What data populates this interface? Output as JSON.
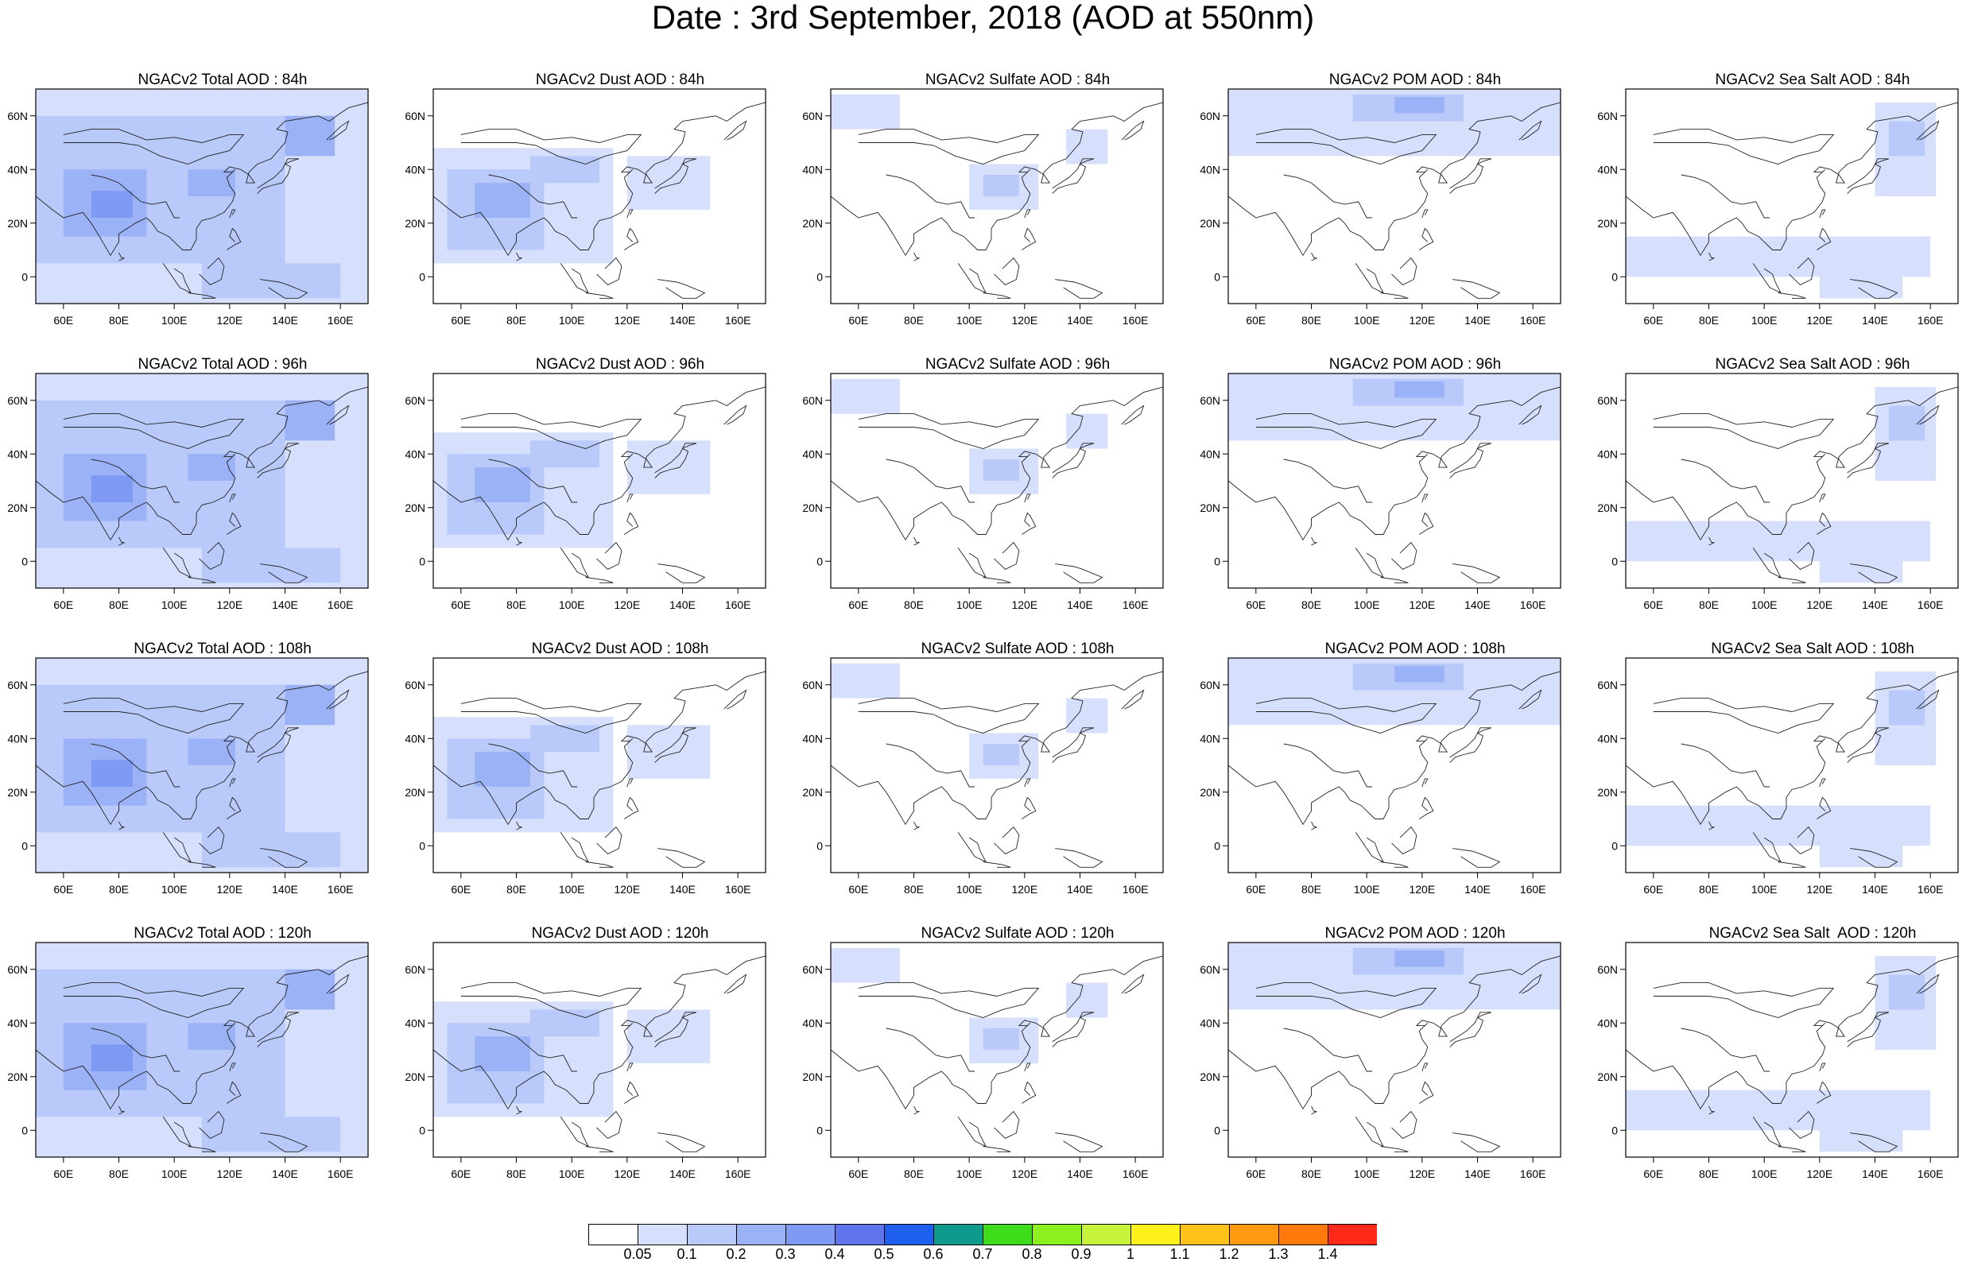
{
  "title": "Date : 3rd September, 2018 (AOD at 550nm)",
  "axes": {
    "lon_ticks": [
      60,
      80,
      100,
      120,
      140,
      160
    ],
    "lon_labels": [
      "60E",
      "80E",
      "100E",
      "120E",
      "140E",
      "160E"
    ],
    "lat_ticks": [
      0,
      20,
      40,
      60
    ],
    "lat_labels": [
      "0",
      "20N",
      "40N",
      "60N"
    ],
    "lon_range": [
      50,
      170
    ],
    "lat_range": [
      -10,
      70
    ]
  },
  "rows": [
    {
      "lead": "84h",
      "panels": [
        {
          "species": "total",
          "title": "NGACv2 Total AOD : 84h"
        },
        {
          "species": "dust",
          "title": "NGACv2 Dust AOD : 84h"
        },
        {
          "species": "sulfate",
          "title": "NGACv2 Sulfate AOD : 84h"
        },
        {
          "species": "pom",
          "title": "NGACv2 POM AOD : 84h"
        },
        {
          "species": "seasalt",
          "title": "NGACv2 Sea Salt AOD : 84h"
        }
      ]
    },
    {
      "lead": "96h",
      "panels": [
        {
          "species": "total",
          "title": "NGACv2 Total AOD : 96h"
        },
        {
          "species": "dust",
          "title": "NGACv2 Dust AOD : 96h"
        },
        {
          "species": "sulfate",
          "title": "NGACv2 Sulfate AOD : 96h"
        },
        {
          "species": "pom",
          "title": "NGACv2 POM AOD : 96h"
        },
        {
          "species": "seasalt",
          "title": "NGACv2 Sea Salt AOD : 96h"
        }
      ]
    },
    {
      "lead": "108h",
      "panels": [
        {
          "species": "total",
          "title": "NGACv2 Total AOD : 108h"
        },
        {
          "species": "dust",
          "title": "NGACv2 Dust AOD : 108h"
        },
        {
          "species": "sulfate",
          "title": "NGACv2 Sulfate AOD : 108h"
        },
        {
          "species": "pom",
          "title": "NGACv2 POM AOD : 108h"
        },
        {
          "species": "seasalt",
          "title": "NGACv2 Sea Salt AOD : 108h"
        }
      ]
    },
    {
      "lead": "120h",
      "panels": [
        {
          "species": "total",
          "title": "NGACv2 Total AOD : 120h"
        },
        {
          "species": "dust",
          "title": "NGACv2 Dust AOD : 120h"
        },
        {
          "species": "sulfate",
          "title": "NGACv2 Sulfate AOD : 120h"
        },
        {
          "species": "pom",
          "title": "NGACv2 POM AOD : 120h"
        },
        {
          "species": "seasalt",
          "title": "NGACv2 Sea Salt  AOD : 120h"
        }
      ]
    }
  ],
  "colorbar": {
    "labels": [
      "0.05",
      "0.1",
      "0.2",
      "0.3",
      "0.4",
      "0.5",
      "0.6",
      "0.7",
      "0.8",
      "0.9",
      "1",
      "1.1",
      "1.2",
      "1.3",
      "1.4"
    ],
    "colors": [
      "#ffffff",
      "#d6dffc",
      "#b9c9fa",
      "#9cb2f7",
      "#7f9af3",
      "#5f73ee",
      "#1f5ff0",
      "#0f9a8e",
      "#3fdc1c",
      "#8cef1e",
      "#c7f43a",
      "#fff21a",
      "#ffc21a",
      "#ff9a10",
      "#ff7a0a",
      "#ff2a1a"
    ]
  },
  "features": {
    "total": [
      {
        "lon": [
          50,
          170
        ],
        "lat": [
          -10,
          70
        ],
        "level": 1
      },
      {
        "lon": [
          50,
          140
        ],
        "lat": [
          5,
          60
        ],
        "level": 2
      },
      {
        "lon": [
          60,
          90
        ],
        "lat": [
          15,
          40
        ],
        "level": 3
      },
      {
        "lon": [
          70,
          85
        ],
        "lat": [
          22,
          32
        ],
        "level": 4
      },
      {
        "lon": [
          105,
          122
        ],
        "lat": [
          30,
          40
        ],
        "level": 3
      },
      {
        "lon": [
          140,
          158
        ],
        "lat": [
          45,
          60
        ],
        "level": 3
      },
      {
        "lon": [
          110,
          160
        ],
        "lat": [
          -8,
          5
        ],
        "level": 2
      }
    ],
    "dust": [
      {
        "lon": [
          50,
          115
        ],
        "lat": [
          5,
          48
        ],
        "level": 1
      },
      {
        "lon": [
          55,
          90
        ],
        "lat": [
          10,
          40
        ],
        "level": 2
      },
      {
        "lon": [
          65,
          85
        ],
        "lat": [
          22,
          35
        ],
        "level": 3
      },
      {
        "lon": [
          85,
          110
        ],
        "lat": [
          35,
          45
        ],
        "level": 2
      },
      {
        "lon": [
          120,
          150
        ],
        "lat": [
          25,
          45
        ],
        "level": 1
      }
    ],
    "sulfate": [
      {
        "lon": [
          50,
          75
        ],
        "lat": [
          55,
          68
        ],
        "level": 1
      },
      {
        "lon": [
          100,
          125
        ],
        "lat": [
          25,
          42
        ],
        "level": 1
      },
      {
        "lon": [
          105,
          118
        ],
        "lat": [
          30,
          38
        ],
        "level": 2
      },
      {
        "lon": [
          135,
          150
        ],
        "lat": [
          42,
          55
        ],
        "level": 1
      }
    ],
    "pom": [
      {
        "lon": [
          50,
          170
        ],
        "lat": [
          45,
          70
        ],
        "level": 1
      },
      {
        "lon": [
          95,
          135
        ],
        "lat": [
          58,
          68
        ],
        "level": 2
      },
      {
        "lon": [
          110,
          128
        ],
        "lat": [
          61,
          67
        ],
        "level": 3
      }
    ],
    "seasalt": [
      {
        "lon": [
          140,
          162
        ],
        "lat": [
          30,
          65
        ],
        "level": 1
      },
      {
        "lon": [
          145,
          158
        ],
        "lat": [
          45,
          58
        ],
        "level": 2
      },
      {
        "lon": [
          50,
          160
        ],
        "lat": [
          0,
          15
        ],
        "level": 1
      },
      {
        "lon": [
          120,
          150
        ],
        "lat": [
          -8,
          10
        ],
        "level": 1
      }
    ]
  }
}
